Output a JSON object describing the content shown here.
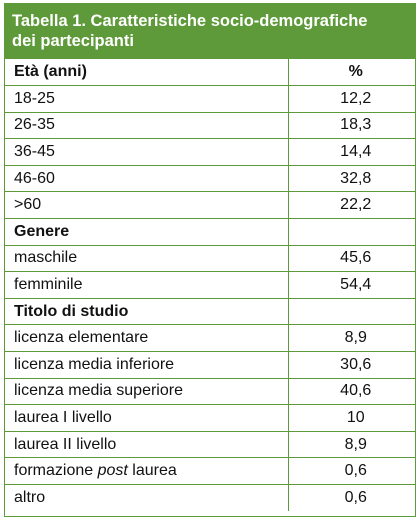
{
  "title": {
    "line1": "Tabella 1. Caratteristiche socio-demografiche",
    "line2": "dei partecipanti"
  },
  "header": {
    "label": "Età (anni)",
    "unit": "%"
  },
  "age_rows": [
    {
      "label": "18-25",
      "value": "12,2"
    },
    {
      "label": "26-35",
      "value": "18,3"
    },
    {
      "label": "36-45",
      "value": "14,4"
    },
    {
      "label": "46-60",
      "value": "32,8"
    },
    {
      "label": ">60",
      "value": "22,2"
    }
  ],
  "gender": {
    "heading": "Genere",
    "rows": [
      {
        "label": "maschile",
        "value": "45,6"
      },
      {
        "label": "femminile",
        "value": "54,4"
      }
    ]
  },
  "education": {
    "heading": "Titolo di studio",
    "rows": [
      {
        "label": "licenza elementare",
        "value": "8,9"
      },
      {
        "label": "licenza media inferiore",
        "value": "30,6"
      },
      {
        "label": "licenza media superiore",
        "value": "40,6"
      },
      {
        "label": "laurea I livello",
        "value": "10"
      },
      {
        "label": "laurea II livello",
        "value": "8,9"
      },
      {
        "label_before": "formazione ",
        "label_italic": "post",
        "label_after": " laurea",
        "value": "0,6"
      },
      {
        "label": "altro",
        "value": "0,6"
      }
    ]
  }
}
